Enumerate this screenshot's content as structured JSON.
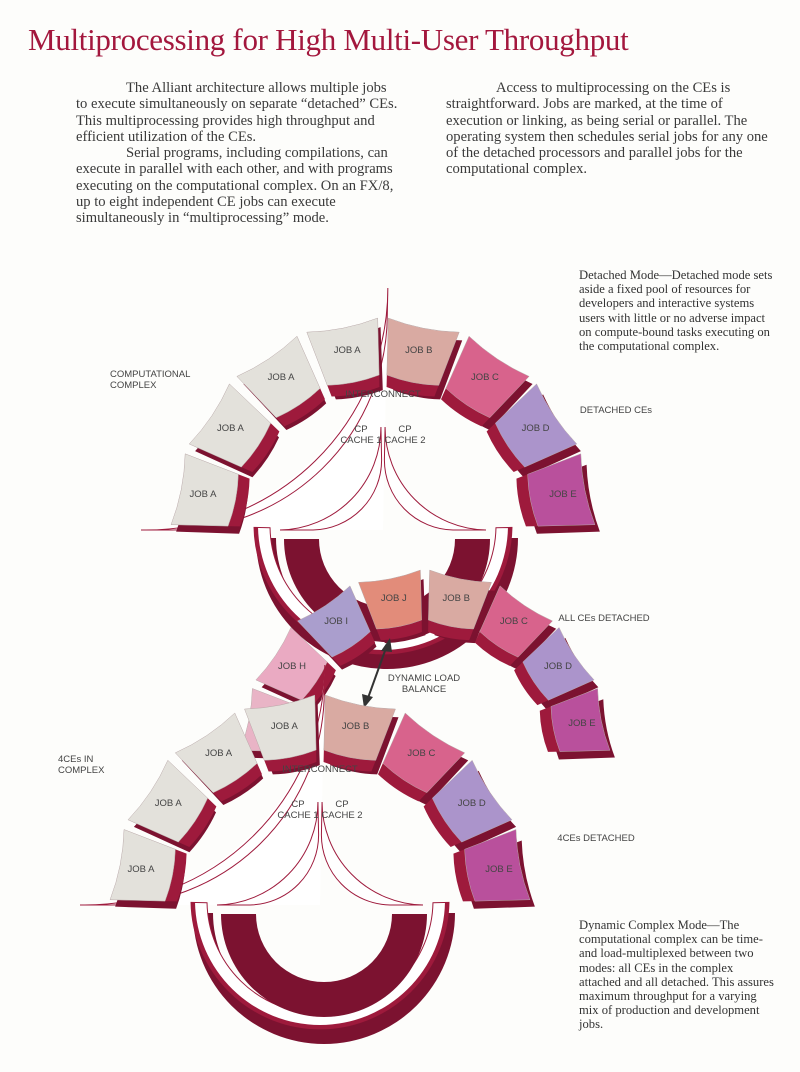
{
  "title": "Multiprocessing for High Multi-User Throughput",
  "body": {
    "paragraphs": [
      "The Alliant architecture allows multiple jobs to execute simultaneously on separate “detached” CEs. This multiprocessing provides high throughput and efficient utilization of the CEs.",
      "Serial programs, including compilations, can execute in parallel with each other, and with programs executing on the computational complex. On an FX/8, up to eight independent CE jobs can execute simultaneously in “multiprocessing” mode.",
      "Access to multiprocessing on the CEs is straightforward. Jobs are marked, at the time of execution or linking, as being serial or parallel. The operating system then schedules serial jobs for any one of the detached processors and parallel jobs for the computational complex."
    ]
  },
  "captions": [
    "Detached Mode—Detached mode sets aside a fixed pool of resources for developers and interactive systems users with little or no adverse impact on compute-bound tasks executing on the computational complex.",
    "Dynamic Complex Mode—The computational complex can be time- and load-multiplexed between two modes: all CEs in the complex attached and all detached. This assures maximum throughput for a varying mix of production and development jobs."
  ],
  "diagrams": [
    {
      "complex_label": "COMPUTATIONAL COMPLEX",
      "interconnect_label": "INTERCONNECT",
      "cache_labels": [
        "CP CACHE 1",
        "CP CACHE 2"
      ],
      "detached_label": "DETACHED CEs",
      "jobs": [
        "JOB A",
        "JOB A",
        "JOB A",
        "JOB A",
        "JOB B",
        "JOB C",
        "JOB D",
        "JOB E"
      ],
      "colors": [
        "#e3e1db",
        "#e3e1db",
        "#e3e1db",
        "#e3e1db",
        "#d9aaa2",
        "#d8638c",
        "#ab94cb",
        "#b9509c"
      ]
    },
    {
      "detached_label": "ALL CEs DETACHED",
      "balance_label": "DYNAMIC LOAD BALANCE",
      "jobs": [
        "JOB H",
        "JOB I",
        "JOB J",
        "JOB B",
        "JOB C",
        "JOB D",
        "JOB E"
      ],
      "colors": [
        "#eaaac2",
        "#aa9ecd",
        "#e28c7a",
        "#d9aaa2",
        "#d8638c",
        "#ab94cb",
        "#b9509c"
      ]
    },
    {
      "complex_label": "4CEs IN COMPLEX",
      "interconnect_label": "INTERCONNECT",
      "cache_labels": [
        "CP CACHE 1",
        "CP CACHE 2"
      ],
      "detached_label": "4CEs DETACHED",
      "jobs": [
        "JOB A",
        "JOB A",
        "JOB A",
        "JOB A",
        "JOB B",
        "JOB C",
        "JOB D",
        "JOB E"
      ],
      "colors": [
        "#e3e1db",
        "#e3e1db",
        "#e3e1db",
        "#e3e1db",
        "#d9aaa2",
        "#d8638c",
        "#ab94cb",
        "#b9509c"
      ]
    }
  ]
}
